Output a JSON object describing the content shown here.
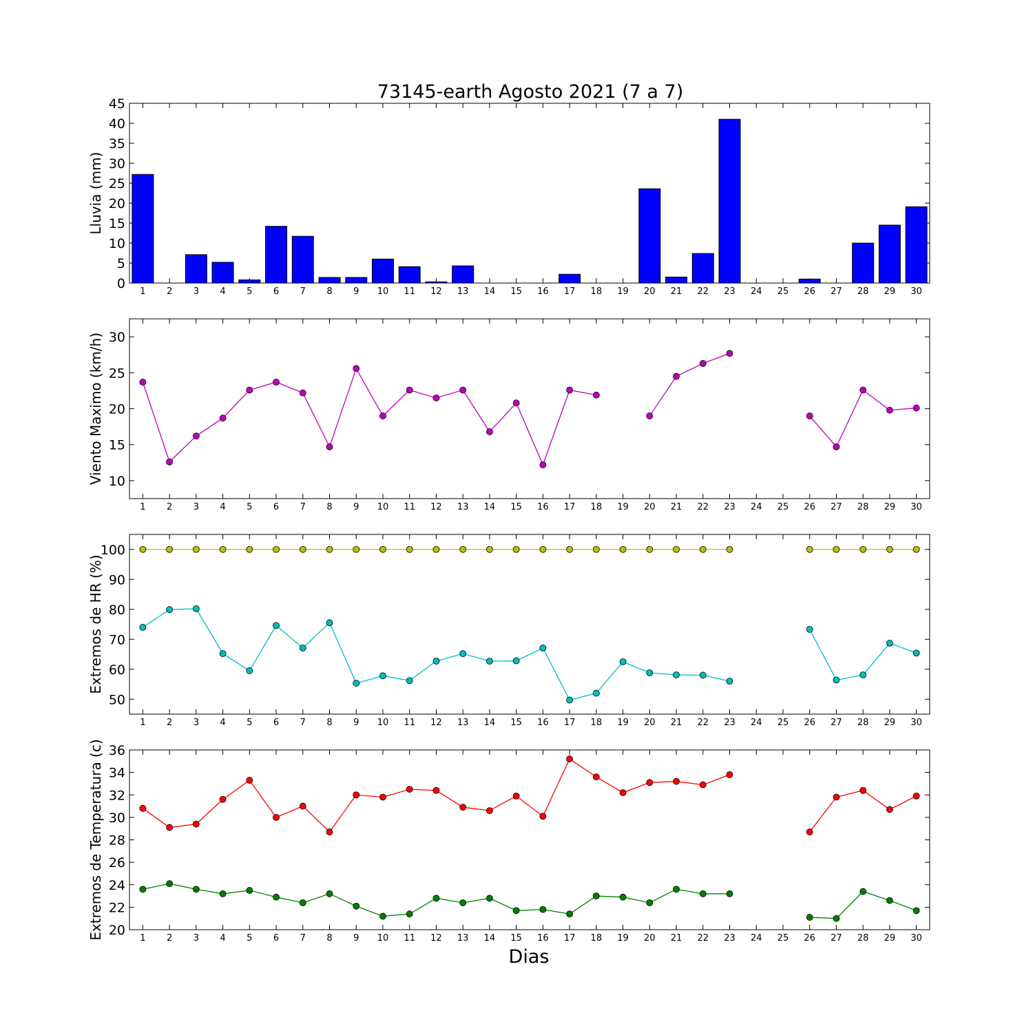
{
  "title": "73145-earth Agosto 2021  (7 a 7)",
  "xlabel": "Dias",
  "chart_data": [
    {
      "type": "bar",
      "ylabel": "Lluvia (mm)",
      "ylim": [
        0,
        45
      ],
      "yticks": [
        0,
        5,
        10,
        15,
        20,
        25,
        30,
        35,
        40,
        45
      ],
      "x": [
        1,
        2,
        3,
        4,
        5,
        6,
        7,
        8,
        9,
        10,
        11,
        12,
        13,
        14,
        15,
        16,
        17,
        18,
        19,
        20,
        21,
        22,
        23,
        24,
        25,
        26,
        27,
        28,
        29,
        30
      ],
      "series": [
        {
          "color": "#0000ff",
          "values": [
            27.2,
            0,
            7.1,
            5.2,
            0.8,
            14.2,
            11.7,
            1.4,
            1.4,
            6.0,
            4.1,
            0.3,
            4.3,
            0,
            0,
            0,
            2.2,
            0,
            0,
            23.6,
            1.5,
            7.4,
            41.0,
            0,
            0,
            1.0,
            0,
            10.0,
            14.5,
            19.1
          ]
        }
      ]
    },
    {
      "type": "line",
      "ylabel": "Viento Maximo (km/h)",
      "ylim": [
        7.5,
        32.5
      ],
      "yticks": [
        10,
        15,
        20,
        25,
        30
      ],
      "x": [
        1,
        2,
        3,
        4,
        5,
        6,
        7,
        8,
        9,
        10,
        11,
        12,
        13,
        14,
        15,
        16,
        17,
        18,
        19,
        20,
        21,
        22,
        23,
        24,
        25,
        26,
        27,
        28,
        29,
        30
      ],
      "series": [
        {
          "color": "#bf00bf",
          "values": [
            23.7,
            12.6,
            16.2,
            18.7,
            22.6,
            23.7,
            22.2,
            14.7,
            25.6,
            19.0,
            22.6,
            21.5,
            22.6,
            16.8,
            20.8,
            12.2,
            22.6,
            21.9,
            null,
            19.0,
            24.5,
            26.3,
            27.7,
            null,
            null,
            19.0,
            14.7,
            22.6,
            19.8,
            20.1
          ]
        }
      ]
    },
    {
      "type": "line",
      "ylabel": "Extremos de HR (%)",
      "ylim": [
        45,
        105
      ],
      "yticks": [
        50,
        60,
        70,
        80,
        90,
        100
      ],
      "x": [
        1,
        2,
        3,
        4,
        5,
        6,
        7,
        8,
        9,
        10,
        11,
        12,
        13,
        14,
        15,
        16,
        17,
        18,
        19,
        20,
        21,
        22,
        23,
        24,
        25,
        26,
        27,
        28,
        29,
        30
      ],
      "series": [
        {
          "color": "#bfbf00",
          "values": [
            100,
            100,
            100,
            100,
            100,
            100,
            100,
            100,
            100,
            100,
            100,
            100,
            100,
            100,
            100,
            100,
            100,
            100,
            100,
            100,
            100,
            100,
            100,
            null,
            null,
            100,
            100,
            100,
            100,
            100
          ]
        },
        {
          "color": "#00bfbf",
          "values": [
            74.0,
            79.9,
            80.2,
            65.2,
            59.5,
            74.6,
            67.1,
            75.5,
            55.3,
            57.8,
            56.2,
            62.7,
            65.2,
            62.7,
            62.8,
            67.1,
            49.7,
            52.0,
            62.5,
            58.8,
            58.1,
            58.0,
            56.0,
            null,
            null,
            73.3,
            56.4,
            58.1,
            68.7,
            65.4
          ]
        }
      ]
    },
    {
      "type": "line",
      "ylabel": "Extremos de Temperatura (c)",
      "ylim": [
        20,
        36
      ],
      "yticks": [
        20,
        22,
        24,
        26,
        28,
        30,
        32,
        34,
        36
      ],
      "x": [
        1,
        2,
        3,
        4,
        5,
        6,
        7,
        8,
        9,
        10,
        11,
        12,
        13,
        14,
        15,
        16,
        17,
        18,
        19,
        20,
        21,
        22,
        23,
        24,
        25,
        26,
        27,
        28,
        29,
        30
      ],
      "series": [
        {
          "color": "#ff0000",
          "values": [
            30.8,
            29.1,
            29.4,
            31.6,
            33.3,
            30.0,
            31.0,
            28.7,
            32.0,
            31.8,
            32.5,
            32.4,
            30.9,
            30.6,
            31.9,
            30.1,
            35.2,
            33.6,
            32.2,
            33.1,
            33.2,
            32.9,
            33.8,
            null,
            null,
            28.7,
            31.8,
            32.4,
            30.7,
            31.9
          ]
        },
        {
          "color": "#008000",
          "values": [
            23.6,
            24.1,
            23.6,
            23.2,
            23.5,
            22.9,
            22.4,
            23.2,
            22.1,
            21.2,
            21.4,
            22.8,
            22.4,
            22.8,
            21.7,
            21.8,
            21.4,
            23.0,
            22.9,
            22.4,
            23.6,
            23.2,
            23.2,
            null,
            null,
            21.1,
            21.0,
            23.4,
            22.6,
            21.7
          ]
        }
      ]
    }
  ]
}
